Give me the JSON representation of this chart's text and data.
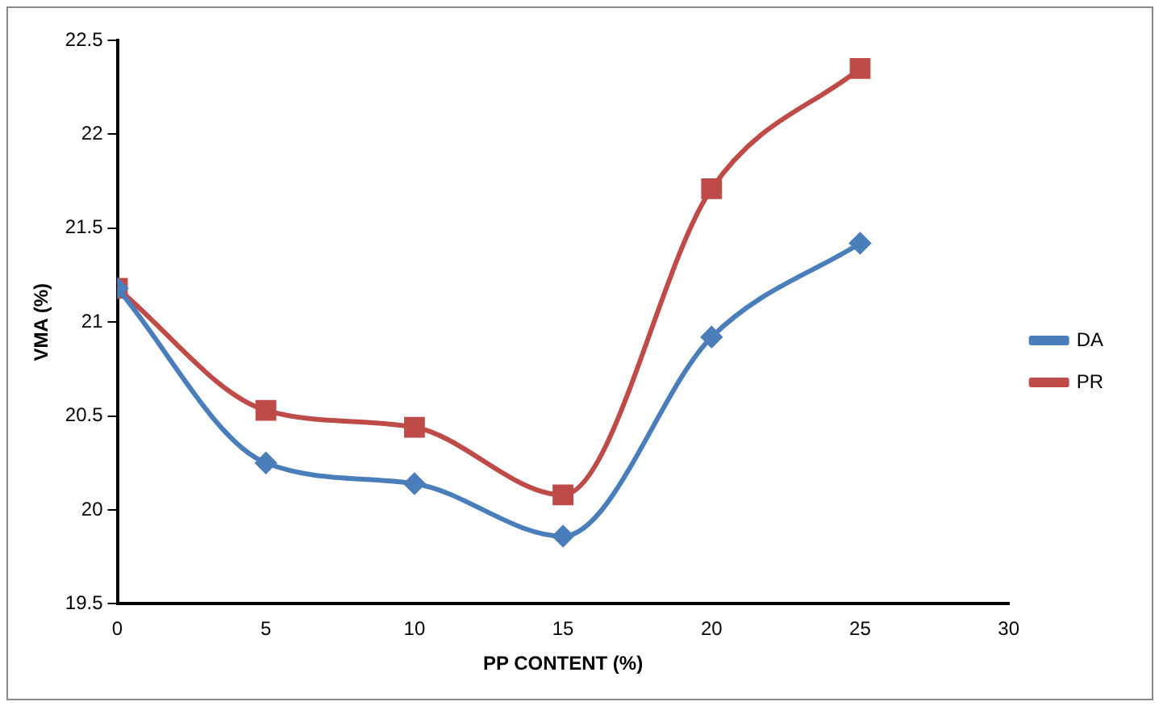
{
  "chart_data": {
    "type": "line",
    "xlabel": "PP CONTENT (%)",
    "ylabel": "VMA (%)",
    "x": [
      0,
      5,
      10,
      15,
      20,
      25
    ],
    "xlim": [
      0,
      30
    ],
    "xticks": [
      0,
      5,
      10,
      15,
      20,
      25,
      30
    ],
    "ylim": [
      19.5,
      22.5
    ],
    "yticks": [
      19.5,
      20,
      20.5,
      21,
      21.5,
      22,
      22.5
    ],
    "grid": false,
    "legend": "right",
    "series": [
      {
        "name": "DA",
        "color": "#4a7ebb",
        "marker": "diamond",
        "values": [
          21.18,
          20.25,
          20.14,
          19.86,
          20.92,
          21.42
        ]
      },
      {
        "name": "PR",
        "color": "#be4b48",
        "marker": "square",
        "values": [
          21.18,
          20.53,
          20.44,
          20.08,
          21.71,
          22.35
        ]
      }
    ]
  }
}
